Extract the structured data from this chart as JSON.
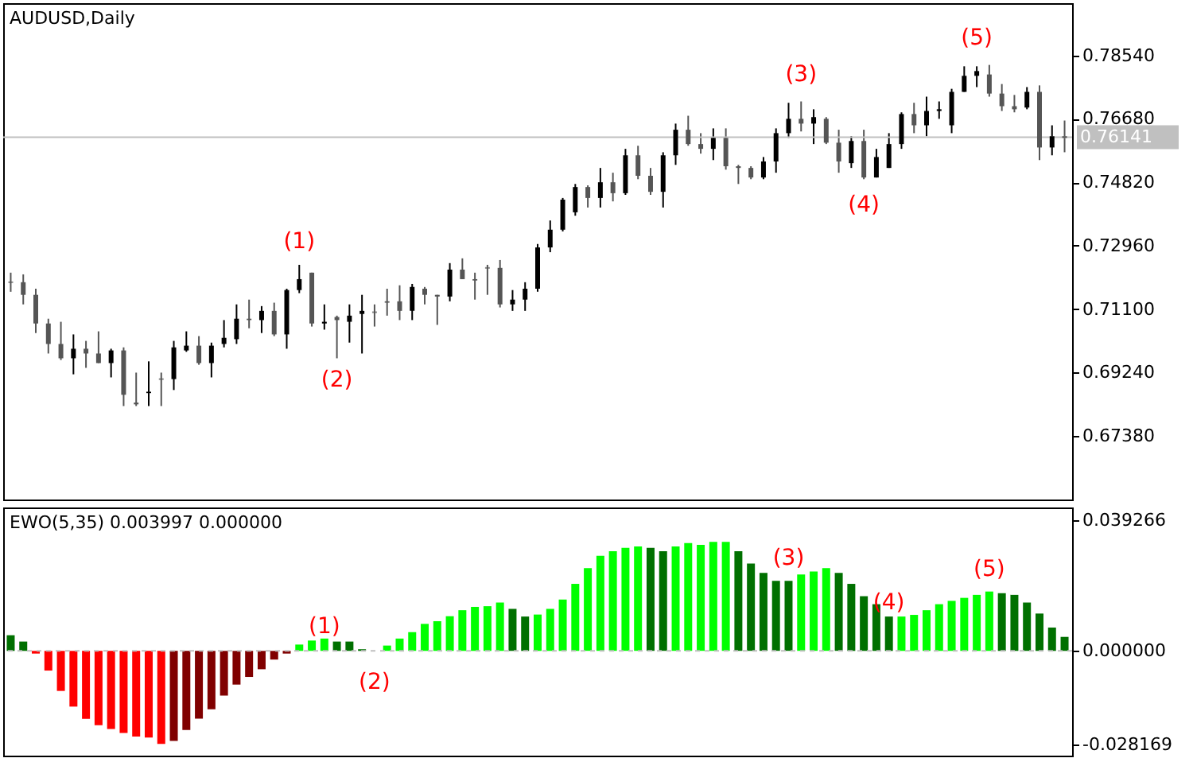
{
  "chart_data": [
    {
      "type": "candlestick",
      "title": "AUDUSD,Daily",
      "categories": [
        null,
        null,
        null,
        null,
        null,
        null,
        null,
        null,
        null,
        null,
        null,
        null,
        null,
        null,
        null,
        null,
        null,
        null,
        null,
        null,
        null,
        null,
        null,
        null,
        null,
        null,
        null,
        null,
        null,
        null,
        null,
        null,
        null,
        null,
        null,
        null,
        null,
        null,
        null,
        null,
        null,
        null,
        null,
        null,
        null,
        null,
        null,
        null,
        null,
        null,
        null,
        null,
        null,
        null,
        null,
        null,
        null,
        null,
        null,
        null,
        null,
        null,
        null,
        null,
        null,
        null,
        null,
        null,
        null,
        null,
        null,
        null,
        null,
        null,
        null,
        null,
        null,
        null,
        null,
        null,
        null,
        null,
        null,
        null,
        null
      ],
      "ohlc": [
        [
          0.7189,
          0.7217,
          0.7161,
          0.7189
        ],
        [
          0.7189,
          0.7212,
          0.7124,
          0.7152
        ],
        [
          0.7152,
          0.717,
          0.704,
          0.7068
        ],
        [
          0.7068,
          0.7082,
          0.698,
          0.7008
        ],
        [
          0.7008,
          0.7073,
          0.6961,
          0.6966
        ],
        [
          0.6966,
          0.7036,
          0.6919,
          0.6994
        ],
        [
          0.6994,
          0.7017,
          0.6938,
          0.698
        ],
        [
          0.698,
          0.7045,
          0.6952,
          0.6952
        ],
        [
          0.6952,
          0.6994,
          0.691,
          0.6989
        ],
        [
          0.6989,
          0.6998,
          0.6826,
          0.6859
        ],
        [
          0.6836,
          0.6924,
          0.6826,
          0.6831
        ],
        [
          0.6864,
          0.6957,
          0.6826,
          0.6868
        ],
        [
          0.6905,
          0.6924,
          0.6826,
          0.6905
        ],
        [
          0.6905,
          0.7017,
          0.6873,
          0.6998
        ],
        [
          0.6989,
          0.7045,
          0.6985,
          0.7003
        ],
        [
          0.7003,
          0.7031,
          0.6947,
          0.6952
        ],
        [
          0.6952,
          0.7012,
          0.691,
          0.7003
        ],
        [
          0.7008,
          0.7078,
          0.6998,
          0.7026
        ],
        [
          0.7022,
          0.7124,
          0.7008,
          0.7082
        ],
        [
          0.7082,
          0.7138,
          0.7054,
          0.7078
        ],
        [
          0.7078,
          0.7119,
          0.704,
          0.7105
        ],
        [
          0.7105,
          0.7129,
          0.7031,
          0.7036
        ],
        [
          0.7036,
          0.717,
          0.6994,
          0.7166
        ],
        [
          0.7166,
          0.724,
          0.7157,
          0.7198
        ],
        [
          0.7217,
          0.7217,
          0.7059,
          0.7068
        ],
        [
          0.7068,
          0.7124,
          0.705,
          0.7073
        ],
        [
          0.7087,
          0.7091,
          0.6966,
          0.7078
        ],
        [
          0.7073,
          0.7124,
          0.7012,
          0.7091
        ],
        [
          0.7096,
          0.7152,
          0.698,
          0.7105
        ],
        [
          0.7101,
          0.7124,
          0.7059,
          0.7101
        ],
        [
          0.7133,
          0.717,
          0.7091,
          0.7129
        ],
        [
          0.7133,
          0.718,
          0.7078,
          0.7105
        ],
        [
          0.7105,
          0.7184,
          0.7078,
          0.7175
        ],
        [
          0.717,
          0.7175,
          0.7124,
          0.7152
        ],
        [
          0.7152,
          0.7152,
          0.7064,
          0.7147
        ],
        [
          0.7147,
          0.7245,
          0.7133,
          0.7226
        ],
        [
          0.7226,
          0.7259,
          0.7198,
          0.7198
        ],
        [
          0.7198,
          0.7217,
          0.7138,
          0.7194
        ],
        [
          0.7231,
          0.724,
          0.7152,
          0.7231
        ],
        [
          0.7231,
          0.7254,
          0.7115,
          0.7124
        ],
        [
          0.7124,
          0.7166,
          0.7105,
          0.7138
        ],
        [
          0.7138,
          0.7189,
          0.7105,
          0.717
        ],
        [
          0.717,
          0.7301,
          0.7161,
          0.7291
        ],
        [
          0.7291,
          0.737,
          0.7277,
          0.7343
        ],
        [
          0.7343,
          0.7436,
          0.7338,
          0.7431
        ],
        [
          0.7394,
          0.7477,
          0.7384,
          0.7468
        ],
        [
          0.7468,
          0.7473,
          0.7408,
          0.7436
        ],
        [
          0.7436,
          0.7524,
          0.7408,
          0.7482
        ],
        [
          0.7482,
          0.751,
          0.7426,
          0.745
        ],
        [
          0.745,
          0.758,
          0.7445,
          0.7561
        ],
        [
          0.7561,
          0.7589,
          0.7491,
          0.7501
        ],
        [
          0.7501,
          0.7524,
          0.7445,
          0.7454
        ],
        [
          0.7454,
          0.757,
          0.7408,
          0.7561
        ],
        [
          0.7561,
          0.7654,
          0.7533,
          0.7636
        ],
        [
          0.7636,
          0.7677,
          0.7589,
          0.7594
        ],
        [
          0.7594,
          0.7626,
          0.7566,
          0.758
        ],
        [
          0.758,
          0.764,
          0.7547,
          0.7612
        ],
        [
          0.7612,
          0.764,
          0.7519,
          0.7529
        ],
        [
          0.7529,
          0.7533,
          0.7477,
          0.7524
        ],
        [
          0.7524,
          0.7529,
          0.7491,
          0.7496
        ],
        [
          0.7496,
          0.7556,
          0.7491,
          0.7543
        ],
        [
          0.7543,
          0.764,
          0.751,
          0.7626
        ],
        [
          0.7626,
          0.7715,
          0.7612,
          0.7668
        ],
        [
          0.7668,
          0.7719,
          0.7631,
          0.7654
        ],
        [
          0.7654,
          0.7696,
          0.7594,
          0.7673
        ],
        [
          0.7668,
          0.7673,
          0.7594,
          0.7598
        ],
        [
          0.7598,
          0.7636,
          0.751,
          0.7543
        ],
        [
          0.7538,
          0.7617,
          0.7524,
          0.7603
        ],
        [
          0.7603,
          0.7636,
          0.7491,
          0.7496
        ],
        [
          0.7496,
          0.758,
          0.7496,
          0.7556
        ],
        [
          0.7524,
          0.7626,
          0.7524,
          0.7594
        ],
        [
          0.7594,
          0.7687,
          0.758,
          0.7682
        ],
        [
          0.7682,
          0.7715,
          0.7626,
          0.7649
        ],
        [
          0.7649,
          0.7733,
          0.7617,
          0.7691
        ],
        [
          0.7691,
          0.7719,
          0.7668,
          0.7696
        ],
        [
          0.7649,
          0.7756,
          0.7626,
          0.7747
        ],
        [
          0.7747,
          0.7822,
          0.7747,
          0.7794
        ],
        [
          0.7794,
          0.7822,
          0.7761,
          0.7808
        ],
        [
          0.7798,
          0.7826,
          0.7733,
          0.7742
        ],
        [
          0.7742,
          0.777,
          0.7691,
          0.7705
        ],
        [
          0.7705,
          0.7738,
          0.7687,
          0.7696
        ],
        [
          0.7701,
          0.7761,
          0.7696,
          0.7747
        ],
        [
          0.7747,
          0.7766,
          0.7547,
          0.7584
        ],
        [
          0.7584,
          0.7649,
          0.7561,
          0.7617
        ],
        [
          0.7617,
          0.7663,
          0.757,
          0.7612
        ]
      ],
      "colors": [
        "#555555",
        "#555555",
        "#555555",
        "#555555",
        "#555555",
        "#000000",
        "#555555",
        "#555555",
        "#000000",
        "#555555",
        "#555555",
        "#000000",
        "#555555",
        "#000000",
        "#000000",
        "#555555",
        "#000000",
        "#000000",
        "#000000",
        "#555555",
        "#000000",
        "#555555",
        "#000000",
        "#000000",
        "#555555",
        "#000000",
        "#555555",
        "#000000",
        "#000000",
        "#555555",
        "#555555",
        "#555555",
        "#000000",
        "#555555",
        "#555555",
        "#000000",
        "#555555",
        "#555555",
        "#555555",
        "#555555",
        "#000000",
        "#000000",
        "#000000",
        "#000000",
        "#000000",
        "#000000",
        "#555555",
        "#000000",
        "#555555",
        "#000000",
        "#555555",
        "#555555",
        "#000000",
        "#000000",
        "#555555",
        "#555555",
        "#000000",
        "#555555",
        "#555555",
        "#555555",
        "#000000",
        "#000000",
        "#000000",
        "#555555",
        "#000000",
        "#555555",
        "#555555",
        "#000000",
        "#555555",
        "#000000",
        "#000000",
        "#000000",
        "#555555",
        "#000000",
        "#000000",
        "#000000",
        "#000000",
        "#000000",
        "#555555",
        "#555555",
        "#555555",
        "#000000",
        "#555555",
        "#000000",
        "#555555"
      ],
      "ylim": [
        0.6552,
        0.8007
      ],
      "yticks": [
        {
          "value": 0.7854,
          "label": "0.78540"
        },
        {
          "value": 0.7668,
          "label": "0.76680"
        },
        {
          "value": 0.7482,
          "label": "0.74820"
        },
        {
          "value": 0.7296,
          "label": "0.72960"
        },
        {
          "value": 0.711,
          "label": "0.71100"
        },
        {
          "value": 0.6924,
          "label": "0.69240"
        },
        {
          "value": 0.6738,
          "label": "0.67380"
        }
      ],
      "ref_lines": [
        {
          "axis": "y",
          "value": 0.76141,
          "label": "0.76141",
          "color": "#c0c0c0"
        }
      ],
      "annotations": [
        "(1)",
        "(2)",
        "(3)",
        "(4)",
        "(5)"
      ],
      "tick_labels": "y",
      "grid": false,
      "legend": false
    },
    {
      "type": "bar",
      "title": "EWO(5,35) 0.003997 0.000000",
      "categories": [
        null,
        null,
        null,
        null,
        null,
        null,
        null,
        null,
        null,
        null,
        null,
        null,
        null,
        null,
        null,
        null,
        null,
        null,
        null,
        null,
        null,
        null,
        null,
        null,
        null,
        null,
        null,
        null,
        null,
        null,
        null,
        null,
        null,
        null,
        null,
        null,
        null,
        null,
        null,
        null,
        null,
        null,
        null,
        null,
        null,
        null,
        null,
        null,
        null,
        null,
        null,
        null,
        null,
        null,
        null,
        null,
        null,
        null,
        null,
        null,
        null,
        null,
        null,
        null,
        null,
        null,
        null,
        null,
        null,
        null,
        null,
        null,
        null,
        null,
        null,
        null,
        null,
        null,
        null,
        null,
        null,
        null,
        null,
        null,
        null
      ],
      "values": [
        0.0047,
        0.0028,
        -0.0008,
        -0.0059,
        -0.012,
        -0.0167,
        -0.0204,
        -0.0223,
        -0.0234,
        -0.0246,
        -0.0257,
        -0.026,
        -0.0279,
        -0.027,
        -0.0237,
        -0.0203,
        -0.0175,
        -0.0134,
        -0.0101,
        -0.0078,
        -0.0055,
        -0.0026,
        -0.0008,
        0.0019,
        0.0031,
        0.0037,
        0.0028,
        0.0028,
        0.0005,
        0,
        0.0016,
        0.0037,
        0.0056,
        0.0081,
        0.0089,
        0.0104,
        0.0122,
        0.0132,
        0.0134,
        0.0145,
        0.0126,
        0.0103,
        0.0109,
        0.0126,
        0.0154,
        0.0201,
        0.0248,
        0.0285,
        0.0299,
        0.0309,
        0.0313,
        0.0309,
        0.0299,
        0.0313,
        0.0323,
        0.0318,
        0.0327,
        0.0327,
        0.0299,
        0.0262,
        0.0234,
        0.021,
        0.021,
        0.0229,
        0.0238,
        0.0248,
        0.0234,
        0.0201,
        0.0164,
        0.014,
        0.0103,
        0.0103,
        0.0108,
        0.0122,
        0.014,
        0.015,
        0.0159,
        0.0168,
        0.0178,
        0.0173,
        0.0168,
        0.0145,
        0.0112,
        0.007,
        0.0042
      ],
      "colors": [
        "#007000",
        "#007000",
        "#ff0000",
        "#ff0000",
        "#ff0000",
        "#ff0000",
        "#ff0000",
        "#ff0000",
        "#ff0000",
        "#ff0000",
        "#ff0000",
        "#ff0000",
        "#ff0000",
        "#800000",
        "#800000",
        "#800000",
        "#800000",
        "#800000",
        "#800000",
        "#800000",
        "#800000",
        "#800000",
        "#800000",
        "#00ff00",
        "#00ff00",
        "#00ff00",
        "#007000",
        "#007000",
        "#007000",
        "#00ff00",
        "#00ff00",
        "#00ff00",
        "#00ff00",
        "#00ff00",
        "#00ff00",
        "#00ff00",
        "#00ff00",
        "#00ff00",
        "#00ff00",
        "#00ff00",
        "#007000",
        "#007000",
        "#00ff00",
        "#00ff00",
        "#00ff00",
        "#00ff00",
        "#00ff00",
        "#00ff00",
        "#00ff00",
        "#00ff00",
        "#00ff00",
        "#007000",
        "#007000",
        "#00ff00",
        "#00ff00",
        "#00ff00",
        "#00ff00",
        "#00ff00",
        "#007000",
        "#007000",
        "#007000",
        "#007000",
        "#007000",
        "#00ff00",
        "#00ff00",
        "#00ff00",
        "#007000",
        "#007000",
        "#007000",
        "#007000",
        "#007000",
        "#00ff00",
        "#00ff00",
        "#00ff00",
        "#00ff00",
        "#00ff00",
        "#00ff00",
        "#00ff00",
        "#00ff00",
        "#007000",
        "#007000",
        "#007000",
        "#007000",
        "#007000",
        "#007000"
      ],
      "ylim": [
        -0.0314,
        0.043
      ],
      "yticks": [
        {
          "value": 0.039266,
          "label": "0.039266"
        },
        {
          "value": 0,
          "label": "0.000000"
        },
        {
          "value": -0.028169,
          "label": "-0.028169"
        }
      ],
      "ref_lines": [
        {
          "axis": "y",
          "value": 0,
          "color": "#c0c0c0",
          "line_style": "dashed"
        }
      ],
      "annotations": [
        "(1)",
        "(2)",
        "(3)",
        "(4)",
        "(5)"
      ],
      "tick_labels": "y",
      "grid": false,
      "legend": false
    }
  ]
}
